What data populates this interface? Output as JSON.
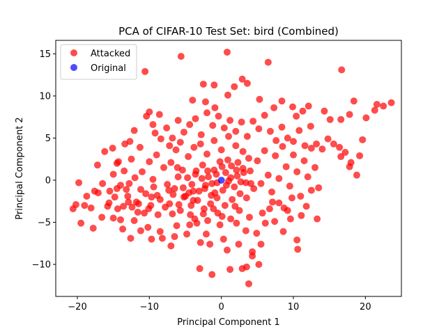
{
  "chart_data": {
    "type": "scatter",
    "title": "PCA of CIFAR-10 Test Set: bird (Combined)",
    "xlabel": "Principal Component 1",
    "ylabel": "Principal Component 2",
    "xlim": [
      -23,
      25
    ],
    "ylim": [
      -13.8,
      16.6
    ],
    "xticks": [
      -20,
      -10,
      0,
      10,
      20
    ],
    "yticks": [
      -10,
      -5,
      0,
      5,
      10,
      15
    ],
    "xtick_labels": [
      "−20",
      "−10",
      "0",
      "10",
      "20"
    ],
    "ytick_labels": [
      "−10",
      "−5",
      "0",
      "5",
      "10",
      "15"
    ],
    "grid": false,
    "legend": {
      "placement": "top-left"
    },
    "series": [
      {
        "name": "Attacked",
        "color": "#ff0000",
        "points": [
          [
            -20.6,
            -3.4
          ],
          [
            -20.2,
            -2.9
          ],
          [
            -19.5,
            -5.1
          ],
          [
            -19.0,
            -3.0
          ],
          [
            -18.1,
            -3.3
          ],
          [
            -17.8,
            -5.7
          ],
          [
            -17.6,
            -1.3
          ],
          [
            -17.1,
            -1.5
          ],
          [
            -16.5,
            -0.4
          ],
          [
            -16.2,
            3.4
          ],
          [
            -15.8,
            -3.1
          ],
          [
            -15.6,
            -2.7
          ],
          [
            -15.0,
            -4.5
          ],
          [
            -14.8,
            -2.0
          ],
          [
            -14.5,
            -1.0
          ],
          [
            -14.0,
            -4.7
          ],
          [
            -13.6,
            -3.1
          ],
          [
            -13.2,
            -1.1
          ],
          [
            -12.8,
            -0.4
          ],
          [
            -12.4,
            -3.2
          ],
          [
            -12.1,
            -4.8
          ],
          [
            -11.8,
            -2.6
          ],
          [
            -11.2,
            -1.1
          ],
          [
            -10.7,
            -3.9
          ],
          [
            -10.2,
            -5.6
          ],
          [
            -9.8,
            -3.0
          ],
          [
            -9.4,
            -0.8
          ],
          [
            -8.9,
            -1.8
          ],
          [
            -8.5,
            -6.1
          ],
          [
            -8.2,
            -6.9
          ],
          [
            -7.8,
            -3.2
          ],
          [
            -7.3,
            -1.2
          ],
          [
            -6.8,
            -4.0
          ],
          [
            -6.2,
            -5.4
          ],
          [
            -5.7,
            -3.6
          ],
          [
            -5.2,
            -2.0
          ],
          [
            -4.8,
            -6.4
          ],
          [
            -4.3,
            -4.1
          ],
          [
            -3.9,
            -2.4
          ],
          [
            -3.4,
            -5.1
          ],
          [
            -2.9,
            -7.4
          ],
          [
            -2.5,
            -4.0
          ],
          [
            -2.1,
            -6.4
          ],
          [
            -1.6,
            -7.6
          ],
          [
            -1.1,
            -3.4
          ],
          [
            -0.6,
            -2.1
          ],
          [
            -0.2,
            -5.3
          ],
          [
            0.3,
            -7.0
          ],
          [
            0.8,
            -8.3
          ],
          [
            1.3,
            -4.6
          ],
          [
            1.9,
            -3.1
          ],
          [
            2.4,
            -7.6
          ],
          [
            2.9,
            -10.5
          ],
          [
            3.4,
            -6.0
          ],
          [
            3.8,
            -12.3
          ],
          [
            4.3,
            -9.0
          ],
          [
            4.9,
            -6.3
          ],
          [
            5.5,
            -7.6
          ],
          [
            6.1,
            -5.1
          ],
          [
            6.7,
            -3.4
          ],
          [
            7.4,
            -4.9
          ],
          [
            8.0,
            -2.7
          ],
          [
            8.6,
            -6.1
          ],
          [
            9.2,
            -3.6
          ],
          [
            9.8,
            -2.1
          ],
          [
            10.5,
            -7.1
          ],
          [
            11.1,
            -4.2
          ],
          [
            11.8,
            -3.1
          ],
          [
            12.5,
            -1.2
          ],
          [
            13.3,
            -4.6
          ],
          [
            -3.0,
            -10.5
          ],
          [
            -1.3,
            -11.2
          ],
          [
            1.2,
            -10.6
          ],
          [
            3.5,
            -10.3
          ],
          [
            5.2,
            -10.0
          ],
          [
            10.6,
            -8.2
          ],
          [
            4.3,
            -8.5
          ],
          [
            -7.0,
            -7.8
          ],
          [
            -12.6,
            -6.9
          ],
          [
            -6.5,
            -6.7
          ],
          [
            -4.1,
            -0.5
          ],
          [
            -3.6,
            0.7
          ],
          [
            -3.1,
            -1.3
          ],
          [
            -2.6,
            1.8
          ],
          [
            -2.2,
            -0.6
          ],
          [
            -1.8,
            0.4
          ],
          [
            -1.4,
            -1.8
          ],
          [
            -1.0,
            1.2
          ],
          [
            -0.6,
            -0.3
          ],
          [
            -0.2,
            2.2
          ],
          [
            0.2,
            -1.2
          ],
          [
            0.6,
            0.9
          ],
          [
            1.0,
            -0.1
          ],
          [
            1.4,
            1.7
          ],
          [
            1.8,
            -0.8
          ],
          [
            2.2,
            0.5
          ],
          [
            2.6,
            -1.6
          ],
          [
            3.0,
            1.4
          ],
          [
            3.4,
            -0.3
          ],
          [
            3.8,
            2.6
          ],
          [
            -5.4,
            1.2
          ],
          [
            -5.0,
            -1.9
          ],
          [
            -4.6,
            2.8
          ],
          [
            -4.2,
            -3.0
          ],
          [
            -3.8,
            3.9
          ],
          [
            -3.3,
            -2.4
          ],
          [
            -2.9,
            4.3
          ],
          [
            -2.4,
            -3.4
          ],
          [
            -2.0,
            3.1
          ],
          [
            -1.5,
            -2.8
          ],
          [
            -1.0,
            4.7
          ],
          [
            -0.5,
            -3.9
          ],
          [
            0.0,
            3.6
          ],
          [
            0.5,
            -3.0
          ],
          [
            1.0,
            5.2
          ],
          [
            1.5,
            -2.3
          ],
          [
            2.0,
            4.1
          ],
          [
            2.5,
            -3.6
          ],
          [
            3.0,
            3.4
          ],
          [
            3.5,
            -2.1
          ],
          [
            4.0,
            1.1
          ],
          [
            4.5,
            -1.0
          ],
          [
            5.0,
            2.3
          ],
          [
            5.5,
            -0.4
          ],
          [
            6.0,
            3.5
          ],
          [
            6.5,
            0.6
          ],
          [
            7.0,
            -1.4
          ],
          [
            7.5,
            2.9
          ],
          [
            8.0,
            0.2
          ],
          [
            8.5,
            4.0
          ],
          [
            9.0,
            1.6
          ],
          [
            9.5,
            -0.7
          ],
          [
            10.0,
            3.0
          ],
          [
            10.5,
            1.0
          ],
          [
            11.0,
            -1.9
          ],
          [
            11.5,
            2.3
          ],
          [
            12.0,
            0.4
          ],
          [
            12.5,
            3.8
          ],
          [
            13.0,
            1.5
          ],
          [
            13.5,
            -0.9
          ],
          [
            -6.0,
            0.4
          ],
          [
            -6.5,
            -1.0
          ],
          [
            -7.0,
            2.1
          ],
          [
            -7.5,
            -0.5
          ],
          [
            -8.0,
            1.5
          ],
          [
            -8.5,
            -2.3
          ],
          [
            -9.0,
            3.0
          ],
          [
            -9.5,
            0.1
          ],
          [
            -10.0,
            2.2
          ],
          [
            -10.5,
            -1.6
          ],
          [
            -11.0,
            1.0
          ],
          [
            -11.5,
            -2.8
          ],
          [
            -12.0,
            0.3
          ],
          [
            -12.5,
            2.5
          ],
          [
            -13.0,
            -1.9
          ],
          [
            -13.5,
            1.1
          ],
          [
            -14.0,
            -0.6
          ],
          [
            -14.5,
            2.0
          ],
          [
            -15.0,
            0.7
          ],
          [
            -15.5,
            -1.3
          ],
          [
            -9.2,
            5.6
          ],
          [
            -8.4,
            4.9
          ],
          [
            -7.6,
            6.2
          ],
          [
            -6.8,
            5.0
          ],
          [
            -6.0,
            7.1
          ],
          [
            -5.2,
            5.7
          ],
          [
            -4.4,
            6.6
          ],
          [
            -3.6,
            7.3
          ],
          [
            -2.8,
            5.4
          ],
          [
            -2.0,
            8.0
          ],
          [
            -1.2,
            6.5
          ],
          [
            -0.4,
            7.6
          ],
          [
            0.4,
            6.2
          ],
          [
            1.2,
            7.1
          ],
          [
            2.0,
            5.8
          ],
          [
            2.8,
            6.9
          ],
          [
            3.6,
            5.2
          ],
          [
            4.4,
            7.0
          ],
          [
            5.2,
            6.1
          ],
          [
            6.0,
            7.7
          ],
          [
            6.8,
            5.8
          ],
          [
            7.6,
            4.7
          ],
          [
            8.4,
            6.3
          ],
          [
            9.2,
            5.0
          ],
          [
            10.0,
            4.6
          ],
          [
            10.8,
            5.9
          ],
          [
            11.6,
            4.1
          ],
          [
            12.4,
            6.4
          ],
          [
            13.2,
            4.3
          ],
          [
            14.0,
            3.7
          ],
          [
            14.8,
            4.9
          ],
          [
            15.6,
            4.3
          ],
          [
            16.4,
            3.9
          ],
          [
            17.2,
            3.3
          ],
          [
            18.0,
            2.1
          ],
          [
            18.8,
            0.6
          ],
          [
            19.6,
            4.8
          ],
          [
            19.2,
            2.9
          ],
          [
            17.8,
            1.6
          ],
          [
            16.6,
            2.8
          ],
          [
            -12.7,
            4.6
          ],
          [
            -12.1,
            5.9
          ],
          [
            -11.3,
            3.9
          ],
          [
            -10.4,
            7.6
          ],
          [
            -10.0,
            8.1
          ],
          [
            -9.5,
            6.6
          ],
          [
            -8.6,
            7.8
          ],
          [
            -7.2,
            4.1
          ],
          [
            -6.3,
            3.6
          ],
          [
            -5.7,
            4.5
          ],
          [
            -4.0,
            9.5
          ],
          [
            -2.2,
            9.3
          ],
          [
            -1.0,
            11.3
          ],
          [
            1.8,
            11.1
          ],
          [
            2.9,
            12.0
          ],
          [
            3.6,
            11.5
          ],
          [
            0.9,
            10.1
          ],
          [
            -0.9,
            8.6
          ],
          [
            5.3,
            9.6
          ],
          [
            7.3,
            8.6
          ],
          [
            8.4,
            9.4
          ],
          [
            9.9,
            8.7
          ],
          [
            10.4,
            7.6
          ],
          [
            11.3,
            8.2
          ],
          [
            12.1,
            8.8
          ],
          [
            14.3,
            8.2
          ],
          [
            15.1,
            7.2
          ],
          [
            16.6,
            7.2
          ],
          [
            17.8,
            7.8
          ],
          [
            18.4,
            9.4
          ],
          [
            20.1,
            7.4
          ],
          [
            21.3,
            8.3
          ],
          [
            22.5,
            8.8
          ],
          [
            23.6,
            9.2
          ],
          [
            21.6,
            9.0
          ],
          [
            16.7,
            13.1
          ],
          [
            0.8,
            15.2
          ],
          [
            6.5,
            14.0
          ],
          [
            -5.6,
            14.7
          ],
          [
            -10.6,
            12.9
          ],
          [
            -2.5,
            11.4
          ],
          [
            -9.7,
            -7.0
          ],
          [
            -11.2,
            -6.0
          ],
          [
            -13.7,
            -5.8
          ],
          [
            -16.6,
            -4.4
          ],
          [
            -18.7,
            -1.9
          ],
          [
            -19.8,
            -0.3
          ],
          [
            -17.2,
            1.8
          ],
          [
            -15.1,
            3.8
          ],
          [
            -14.3,
            2.2
          ],
          [
            -13.4,
            4.3
          ],
          [
            -3.5,
            1.1
          ],
          [
            -2.7,
            0.2
          ],
          [
            -1.9,
            1.1
          ],
          [
            -1.3,
            -0.4
          ],
          [
            -0.7,
            0.7
          ],
          [
            0.1,
            1.6
          ],
          [
            0.7,
            -0.6
          ],
          [
            1.3,
            0.3
          ],
          [
            2.1,
            1.2
          ],
          [
            2.7,
            -0.2
          ],
          [
            -4.7,
            0.3
          ],
          [
            -5.3,
            -0.9
          ],
          [
            -6.1,
            1.5
          ],
          [
            -3.9,
            -1.3
          ],
          [
            -2.3,
            -1.0
          ],
          [
            -0.9,
            -1.5
          ],
          [
            0.9,
            2.4
          ],
          [
            2.3,
            2.1
          ],
          [
            3.1,
            0.9
          ],
          [
            4.1,
            -0.4
          ],
          [
            -4.4,
            -5.3
          ],
          [
            -3.7,
            -4.6
          ],
          [
            -1.9,
            -4.8
          ],
          [
            0.1,
            -4.3
          ],
          [
            2.1,
            -5.1
          ],
          [
            3.9,
            -4.4
          ],
          [
            5.7,
            -3.9
          ],
          [
            7.1,
            -2.6
          ],
          [
            8.7,
            -3.3
          ],
          [
            9.6,
            -4.6
          ],
          [
            -8.8,
            -4.1
          ],
          [
            -10.1,
            -3.4
          ],
          [
            -11.6,
            -3.8
          ],
          [
            -12.9,
            -2.6
          ],
          [
            -14.4,
            -3.4
          ],
          [
            -9.7,
            -2.0
          ],
          [
            -7.2,
            -2.8
          ],
          [
            -5.9,
            -2.9
          ],
          [
            -4.5,
            -1.5
          ],
          [
            -6.7,
            -1.7
          ]
        ]
      },
      {
        "name": "Original",
        "color": "#0000ff",
        "points": [
          [
            0.0,
            0.0
          ]
        ]
      }
    ]
  }
}
